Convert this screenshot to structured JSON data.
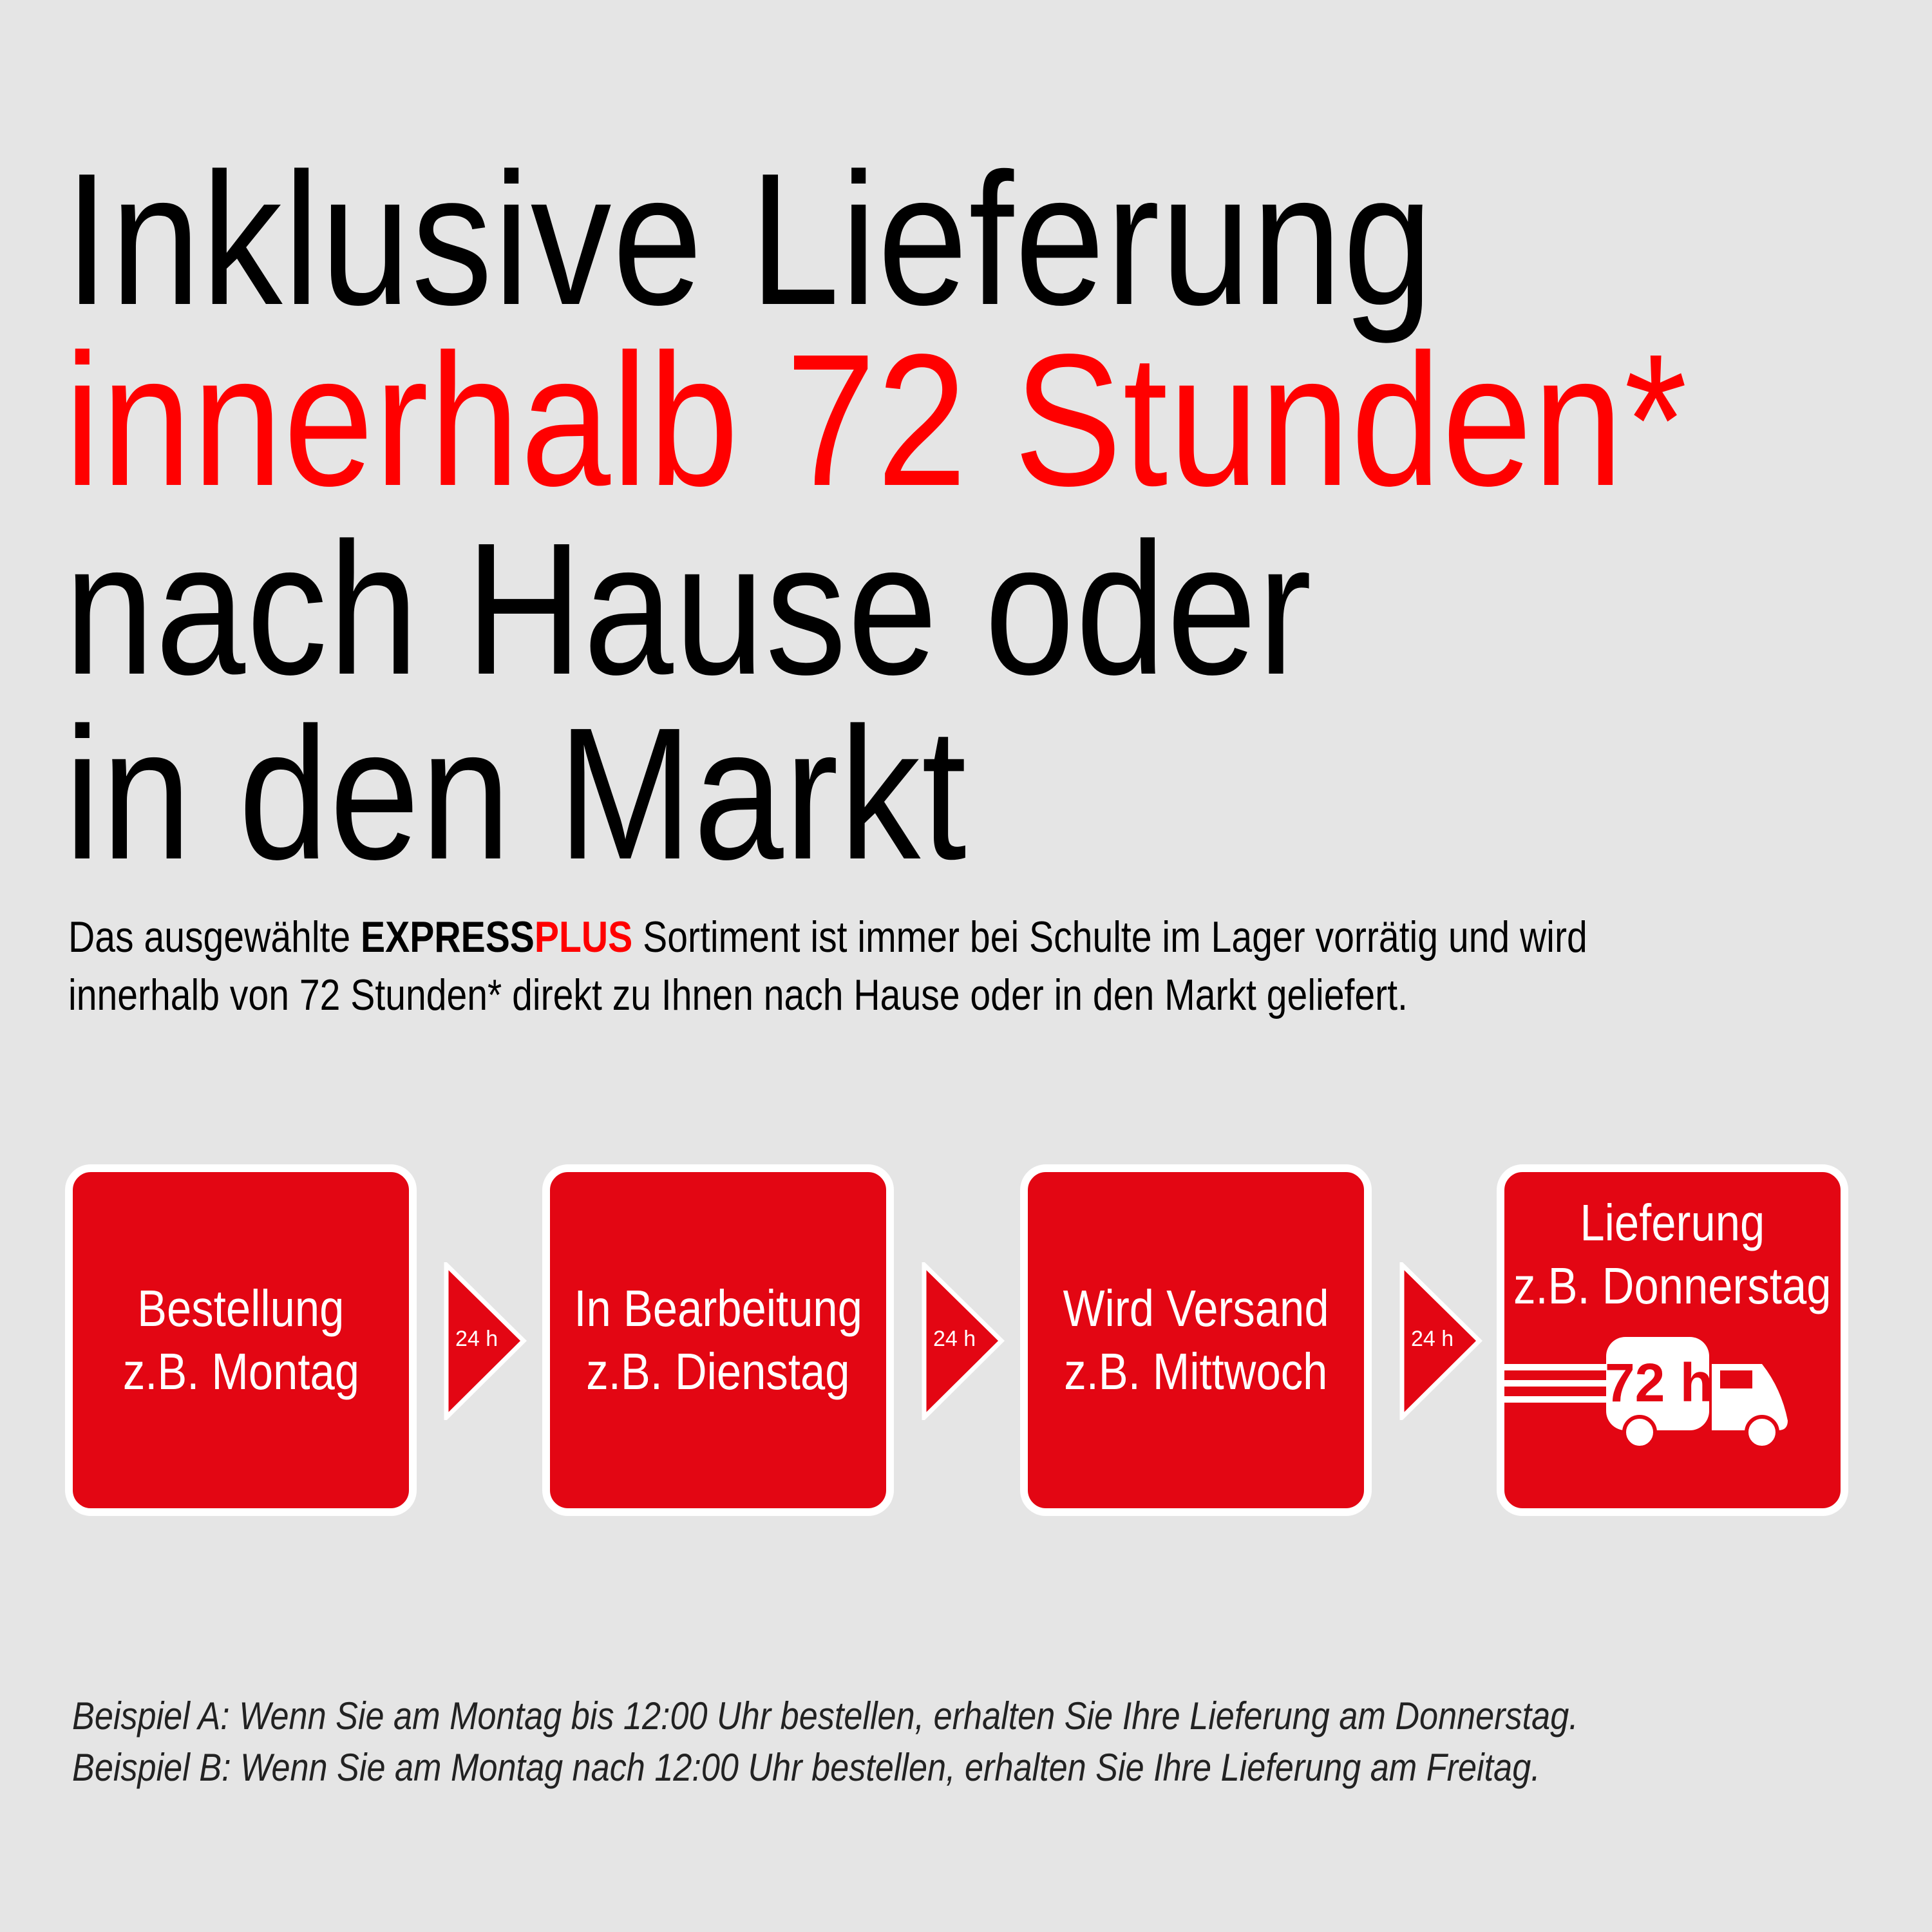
{
  "headline": {
    "line1": "Inklusive Lieferung",
    "line2": "innerhalb 72 Stunden*",
    "line3": "nach Hause oder",
    "line4": "in den Markt"
  },
  "intro": {
    "before": "Das ausgewählte ",
    "brand_express": "EXPRESS",
    "brand_plus": "PLUS",
    "after_line1": " Sortiment ist immer bei Schulte im Lager vorrätig und wird",
    "line2": "innerhalb von 72 Stunden* direkt zu Ihnen nach Hause oder in den Markt geliefert."
  },
  "steps": [
    {
      "line1": "Bestellung",
      "line2": "z.B. Montag"
    },
    {
      "line1": "In Bearbeitung",
      "line2": "z.B. Dienstag"
    },
    {
      "line1": "Wird Versand",
      "line2": "z.B. Mittwoch"
    },
    {
      "line1": "Lieferung",
      "line2": "z.B. Donnerstag",
      "badge": "72 h",
      "icon": "truck-icon"
    }
  ],
  "arrows": [
    "24 h",
    "24 h",
    "24 h"
  ],
  "footnotes": [
    "Beispiel A: Wenn Sie am Montag bis 12:00 Uhr bestellen, erhalten Sie Ihre Lieferung am Donnerstag.",
    "Beispiel B: Wenn Sie am Montag nach 12:00 Uhr bestellen, erhalten Sie Ihre Lieferung am Freitag."
  ],
  "colors": {
    "brand_red": "#e30613",
    "headline_red": "#ff0000",
    "background": "#e5e5e5"
  }
}
